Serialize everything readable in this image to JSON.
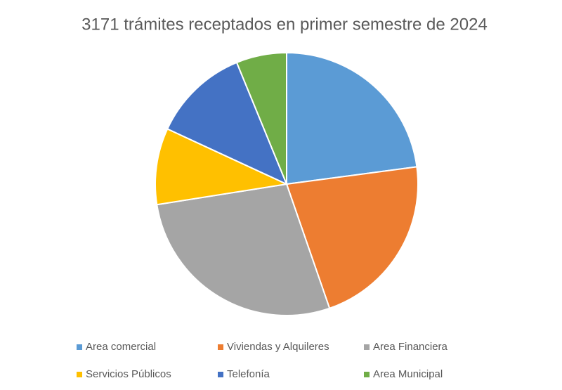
{
  "chart_data": {
    "type": "pie",
    "title": "3171 trámites receptados en primer semestre de 2024",
    "categories": [
      "Area comercial",
      "Viviendas y Alquileres",
      "Area Financiera",
      "Servicios Públicos",
      "Telefonía",
      "Area Municipal"
    ],
    "values": [
      22.9,
      21.8,
      27.8,
      9.4,
      11.9,
      6.2
    ],
    "colors": [
      "#5b9bd5",
      "#ed7d31",
      "#a5a5a5",
      "#ffc000",
      "#4472c4",
      "#70ad47"
    ],
    "legend": "bottom"
  }
}
